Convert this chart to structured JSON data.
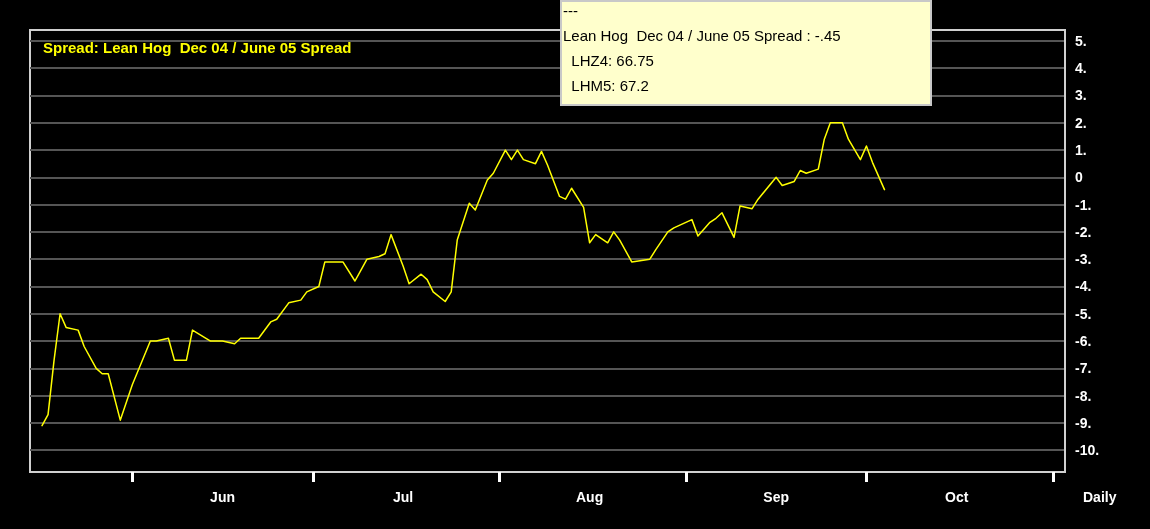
{
  "chart_data": {
    "type": "line",
    "title": "Spread: Lean Hog  Dec 04 / June 05 Spread",
    "xlabel": "Daily",
    "annotations": [
      "---",
      "Lean Hog  Dec 04 / June 05 Spread : -.45",
      "  LHZ4: 66.75",
      "  LHM5: 67.2"
    ],
    "x": [
      "--05-17",
      "--05-18",
      "--05-19",
      "--05-20",
      "--05-21",
      "--05-23",
      "--05-24",
      "--05-26",
      "--05-27",
      "--05-28",
      "--05-30",
      "--06-01",
      "--06-04",
      "--06-05",
      "--06-07",
      "--06-08",
      "--06-10",
      "--06-11",
      "--06-14",
      "--06-16",
      "--06-18",
      "--06-19",
      "--06-22",
      "--06-24",
      "--06-25",
      "--06-27",
      "--06-29",
      "--06-30",
      "--07-02",
      "--07-03",
      "--07-06",
      "--07-08",
      "--07-09",
      "--07-10",
      "--07-12",
      "--07-13",
      "--07-14",
      "--07-16",
      "--07-17",
      "--07-19",
      "--07-20",
      "--07-21",
      "--07-23",
      "--07-24",
      "--07-25",
      "--07-27",
      "--07-28",
      "--07-30",
      "--07-31",
      "--08-02",
      "--08-03",
      "--08-04",
      "--08-05",
      "--08-07",
      "--08-08",
      "--08-09",
      "--08-11",
      "--08-12",
      "--08-13",
      "--08-15",
      "--08-16",
      "--08-17",
      "--08-19",
      "--08-20",
      "--08-21",
      "--08-23",
      "--08-26",
      "--08-27",
      "--08-29",
      "--08-30",
      "--09-02",
      "--09-03",
      "--09-05",
      "--09-06",
      "--09-07",
      "--09-09",
      "--09-10",
      "--09-12",
      "--09-13",
      "--09-16",
      "--09-17",
      "--09-19",
      "--09-20",
      "--09-21",
      "--09-23",
      "--09-24",
      "--09-25",
      "--09-27",
      "--09-28",
      "--09-30",
      "--10-01",
      "--10-02",
      "--10-04"
    ],
    "series": [
      {
        "color": "#ffff00",
        "values": [
          -9.1,
          -8.7,
          -6.7,
          -5.0,
          -5.5,
          -5.6,
          -6.2,
          -7.0,
          -7.2,
          -7.2,
          -8.9,
          -7.6,
          -6.0,
          -6.0,
          -5.9,
          -6.7,
          -6.7,
          -5.6,
          -6.0,
          -6.0,
          -6.1,
          -5.9,
          -5.9,
          -5.3,
          -5.2,
          -4.6,
          -4.5,
          -4.2,
          -4.0,
          -3.1,
          -3.1,
          -3.8,
          -3.4,
          -3.0,
          -2.9,
          -2.8,
          -2.1,
          -3.25,
          -3.9,
          -3.55,
          -3.75,
          -4.2,
          -4.55,
          -4.2,
          -2.3,
          -0.95,
          -1.2,
          -0.1,
          0.15,
          1.0,
          0.65,
          1.0,
          0.65,
          0.5,
          0.95,
          0.45,
          -0.7,
          -0.8,
          -0.4,
          -1.1,
          -2.4,
          -2.1,
          -2.4,
          -2.0,
          -2.3,
          -3.1,
          -3.0,
          -2.65,
          -2.0,
          -1.85,
          -1.55,
          -2.15,
          -1.65,
          -1.5,
          -1.3,
          -2.2,
          -1.05,
          -1.15,
          -0.8,
          0.0,
          -0.3,
          -0.15,
          0.25,
          0.15,
          0.3,
          1.4,
          2.0,
          2.0,
          1.4,
          0.65,
          1.15,
          0.55,
          -0.45
        ]
      }
    ],
    "xlim": [
      "--05-15",
      "--11-03"
    ],
    "xticks": [
      {
        "value": "--06-01",
        "label": null
      },
      {
        "value": "--06-16",
        "label": "Jun"
      },
      {
        "value": "--07-01",
        "label": null
      },
      {
        "value": "--07-16",
        "label": "Jul"
      },
      {
        "value": "--08-01",
        "label": null
      },
      {
        "value": "--08-16",
        "label": "Aug"
      },
      {
        "value": "--09-01",
        "label": null
      },
      {
        "value": "--09-16",
        "label": "Sep"
      },
      {
        "value": "--10-01",
        "label": null
      },
      {
        "value": "--10-16",
        "label": "Oct"
      },
      {
        "value": "--11-01",
        "label": null
      }
    ],
    "ylim": [
      -10.8,
      5.4
    ],
    "yticks": [
      {
        "value": 5,
        "label": "5."
      },
      {
        "value": 4,
        "label": "4."
      },
      {
        "value": 3,
        "label": "3."
      },
      {
        "value": 2,
        "label": "2."
      },
      {
        "value": 1,
        "label": "1."
      },
      0,
      {
        "value": -1,
        "label": "-1."
      },
      {
        "value": -2,
        "label": "-2."
      },
      {
        "value": -3,
        "label": "-3."
      },
      {
        "value": -4,
        "label": "-4."
      },
      {
        "value": -5,
        "label": "-5."
      },
      {
        "value": -6,
        "label": "-6."
      },
      {
        "value": -7,
        "label": "-7."
      },
      {
        "value": -8,
        "label": "-8."
      },
      {
        "value": -9,
        "label": "-9."
      },
      {
        "value": -10,
        "label": "-10."
      }
    ],
    "grid": "y",
    "marker": "none",
    "line_style": "solid"
  }
}
